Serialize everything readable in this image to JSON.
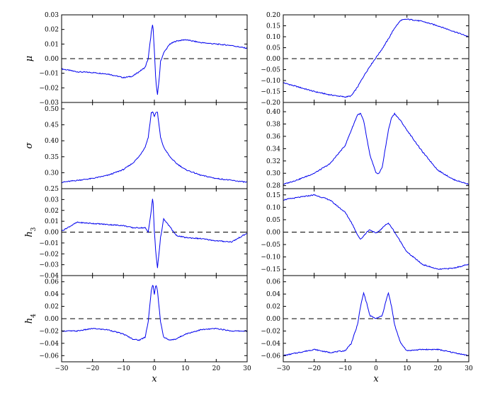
{
  "chart_data": [
    {
      "type": "line",
      "panel": "mu-left",
      "ylabel": "μ",
      "xlabel": "",
      "xlim": [
        -30,
        30
      ],
      "ylim": [
        -0.03,
        0.03
      ],
      "yticks": [
        "−0.03",
        "−0.02",
        "−0.01",
        "0.00",
        "0.01",
        "0.02",
        "0.03"
      ],
      "zero_line": true,
      "x": [
        -30,
        -25,
        -20,
        -15,
        -10,
        -7,
        -5,
        -3,
        -2,
        -1,
        -0.5,
        0,
        0.5,
        1,
        1.5,
        2,
        3,
        4,
        5,
        7,
        10,
        15,
        20,
        25,
        30
      ],
      "series": [
        {
          "color": "#0000ee",
          "values": [
            -0.007,
            -0.009,
            -0.0095,
            -0.0105,
            -0.013,
            -0.012,
            -0.009,
            -0.006,
            0.0,
            0.018,
            0.024,
            0.005,
            -0.016,
            -0.025,
            -0.015,
            -0.002,
            0.004,
            0.007,
            0.01,
            0.012,
            0.013,
            0.011,
            0.01,
            0.009,
            0.007
          ]
        }
      ]
    },
    {
      "type": "line",
      "panel": "mu-right",
      "ylabel": "",
      "xlabel": "",
      "xlim": [
        -30,
        30
      ],
      "ylim": [
        -0.2,
        0.2
      ],
      "yticks": [
        "−0.20",
        "−0.15",
        "−0.10",
        "−0.05",
        "0.00",
        "0.05",
        "0.10",
        "0.15",
        "0.20"
      ],
      "zero_line": true,
      "x": [
        -30,
        -25,
        -20,
        -15,
        -10,
        -8,
        -6,
        -4,
        -2,
        0,
        2,
        4,
        6,
        8,
        10,
        12,
        15,
        20,
        25,
        30
      ],
      "series": [
        {
          "color": "#0000ee",
          "values": [
            -0.11,
            -0.13,
            -0.15,
            -0.165,
            -0.175,
            -0.17,
            -0.13,
            -0.08,
            -0.035,
            0.005,
            0.045,
            0.09,
            0.14,
            0.175,
            0.18,
            0.177,
            0.17,
            0.15,
            0.125,
            0.1
          ]
        }
      ]
    },
    {
      "type": "line",
      "panel": "sigma-left",
      "ylabel": "σ",
      "xlabel": "",
      "xlim": [
        -30,
        30
      ],
      "ylim": [
        0.25,
        0.52
      ],
      "yticks": [
        "0.25",
        "0.30",
        "0.35",
        "0.40",
        "0.45",
        "0.50"
      ],
      "zero_line": false,
      "x": [
        -30,
        -25,
        -20,
        -15,
        -10,
        -7,
        -5,
        -3,
        -2,
        -1,
        -0.5,
        0,
        0.5,
        1,
        2,
        3,
        5,
        7,
        10,
        15,
        20,
        25,
        30
      ],
      "series": [
        {
          "color": "#0000ee",
          "values": [
            0.27,
            0.276,
            0.282,
            0.292,
            0.31,
            0.33,
            0.35,
            0.38,
            0.41,
            0.488,
            0.49,
            0.476,
            0.49,
            0.488,
            0.41,
            0.38,
            0.35,
            0.33,
            0.31,
            0.292,
            0.282,
            0.276,
            0.27
          ]
        }
      ]
    },
    {
      "type": "line",
      "panel": "sigma-right",
      "ylabel": "",
      "xlabel": "",
      "xlim": [
        -30,
        30
      ],
      "ylim": [
        0.275,
        0.415
      ],
      "yticks": [
        "0.28",
        "0.30",
        "0.32",
        "0.34",
        "0.36",
        "0.38",
        "0.40"
      ],
      "zero_line": false,
      "x": [
        -30,
        -25,
        -20,
        -15,
        -10,
        -8,
        -6,
        -5,
        -4,
        -2,
        0,
        1,
        2,
        4,
        5,
        6,
        8,
        10,
        15,
        20,
        25,
        30
      ],
      "series": [
        {
          "color": "#0000ee",
          "values": [
            0.282,
            0.29,
            0.3,
            0.315,
            0.345,
            0.37,
            0.395,
            0.397,
            0.385,
            0.33,
            0.3,
            0.3,
            0.31,
            0.37,
            0.39,
            0.397,
            0.385,
            0.37,
            0.335,
            0.305,
            0.29,
            0.282
          ]
        }
      ]
    },
    {
      "type": "line",
      "panel": "h3-left",
      "ylabel": "h3",
      "xlabel": "",
      "xlim": [
        -30,
        30
      ],
      "ylim": [
        -0.04,
        0.04
      ],
      "yticks": [
        "−0.04",
        "−0.03",
        "−0.02",
        "−0.01",
        "0.00",
        "0.01",
        "0.02",
        "0.03"
      ],
      "zero_line": true,
      "x": [
        -30,
        -25,
        -20,
        -15,
        -10,
        -7,
        -5,
        -3,
        -2,
        -1,
        -0.5,
        0,
        0.5,
        1,
        2,
        3,
        5,
        7,
        10,
        15,
        20,
        25,
        30
      ],
      "series": [
        {
          "color": "#0000ee",
          "values": [
            0.001,
            0.009,
            0.008,
            0.007,
            0.006,
            0.004,
            0.004,
            0.004,
            0.0,
            0.02,
            0.033,
            0.0,
            -0.02,
            -0.033,
            -0.005,
            0.012,
            0.005,
            -0.003,
            -0.005,
            -0.006,
            -0.008,
            -0.009,
            -0.001
          ]
        }
      ]
    },
    {
      "type": "line",
      "panel": "h3-right",
      "ylabel": "",
      "xlabel": "",
      "xlim": [
        -30,
        30
      ],
      "ylim": [
        -0.175,
        0.175
      ],
      "yticks": [
        "−0.15",
        "−0.10",
        "−0.05",
        "0.00",
        "0.05",
        "0.10",
        "0.15"
      ],
      "zero_line": true,
      "x": [
        -30,
        -25,
        -20,
        -15,
        -10,
        -8,
        -6,
        -5,
        -3,
        -2,
        0,
        2,
        3,
        4,
        5,
        7,
        10,
        15,
        20,
        25,
        30
      ],
      "series": [
        {
          "color": "#0000ee",
          "values": [
            0.13,
            0.14,
            0.15,
            0.13,
            0.08,
            0.04,
            -0.01,
            -0.03,
            0.0,
            0.01,
            -0.005,
            0.015,
            0.03,
            0.035,
            0.02,
            -0.02,
            -0.08,
            -0.13,
            -0.15,
            -0.145,
            -0.13
          ]
        }
      ]
    },
    {
      "type": "line",
      "panel": "h4-left",
      "ylabel": "h4",
      "xlabel": "x",
      "xlim": [
        -30,
        30
      ],
      "ylim": [
        -0.07,
        0.07
      ],
      "yticks": [
        "−0.06",
        "−0.04",
        "−0.02",
        "0.00",
        "0.02",
        "0.04",
        "0.06"
      ],
      "xticks": [
        "−30",
        "−20",
        "−10",
        "0",
        "10",
        "20",
        "30"
      ],
      "zero_line": true,
      "x": [
        -30,
        -25,
        -20,
        -15,
        -10,
        -7,
        -5,
        -3,
        -2,
        -1,
        -0.5,
        0,
        0.5,
        1,
        2,
        3,
        5,
        7,
        10,
        15,
        20,
        25,
        30
      ],
      "series": [
        {
          "color": "#0000ee",
          "values": [
            -0.02,
            -0.02,
            -0.016,
            -0.018,
            -0.025,
            -0.033,
            -0.035,
            -0.03,
            -0.005,
            0.045,
            0.056,
            0.04,
            0.056,
            0.045,
            -0.005,
            -0.03,
            -0.035,
            -0.033,
            -0.025,
            -0.018,
            -0.016,
            -0.02,
            -0.02
          ]
        }
      ]
    },
    {
      "type": "line",
      "panel": "h4-right",
      "ylabel": "",
      "xlabel": "x",
      "xlim": [
        -30,
        30
      ],
      "ylim": [
        -0.07,
        0.07
      ],
      "yticks": [
        "−0.06",
        "−0.04",
        "−0.02",
        "0.00",
        "0.02",
        "0.04",
        "0.06"
      ],
      "xticks": [
        "−30",
        "−20",
        "−10",
        "0",
        "10",
        "20",
        "30"
      ],
      "zero_line": true,
      "x": [
        -30,
        -25,
        -20,
        -15,
        -10,
        -8,
        -6,
        -5,
        -4,
        -3,
        -2,
        0,
        2,
        3,
        4,
        5,
        6,
        8,
        10,
        15,
        20,
        25,
        30
      ],
      "series": [
        {
          "color": "#0000ee",
          "values": [
            -0.06,
            -0.055,
            -0.05,
            -0.055,
            -0.052,
            -0.04,
            -0.01,
            0.02,
            0.042,
            0.025,
            0.005,
            0.0,
            0.005,
            0.025,
            0.042,
            0.02,
            -0.01,
            -0.04,
            -0.052,
            -0.05,
            -0.05,
            -0.055,
            -0.06
          ]
        }
      ]
    }
  ]
}
